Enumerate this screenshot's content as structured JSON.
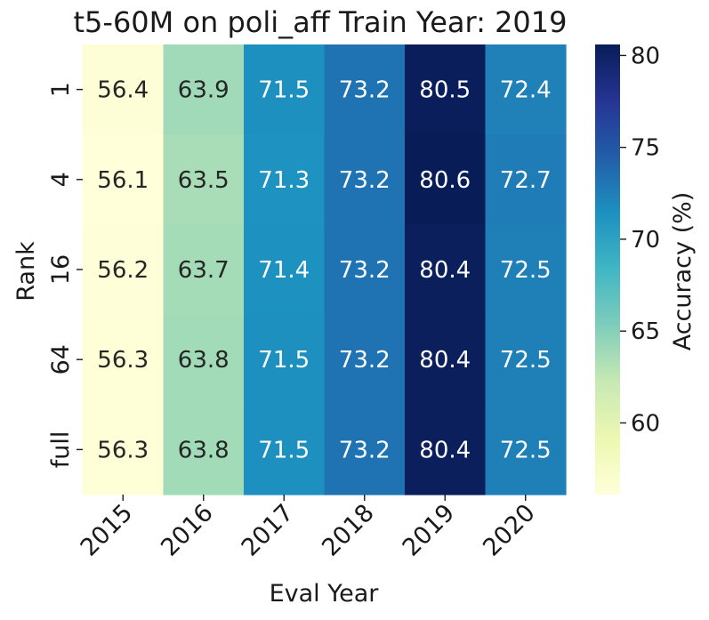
{
  "chart_data": {
    "type": "heatmap",
    "title": "t5-60M on poli_aff Train Year: 2019",
    "xlabel": "Eval Year",
    "ylabel": "Rank",
    "x_categories": [
      "2015",
      "2016",
      "2017",
      "2018",
      "2019",
      "2020"
    ],
    "y_categories": [
      "1",
      "4",
      "16",
      "64",
      "full"
    ],
    "values": [
      [
        56.4,
        63.9,
        71.5,
        73.2,
        80.5,
        72.4
      ],
      [
        56.1,
        63.5,
        71.3,
        73.2,
        80.6,
        72.7
      ],
      [
        56.2,
        63.7,
        71.4,
        73.2,
        80.4,
        72.5
      ],
      [
        56.3,
        63.8,
        71.5,
        73.2,
        80.4,
        72.5
      ],
      [
        56.3,
        63.8,
        71.5,
        73.2,
        80.4,
        72.5
      ]
    ],
    "colorbar": {
      "label": "Accuracy (%)",
      "colormap": "YlGnBu",
      "vmin": 56.1,
      "vmax": 80.6,
      "ticks": [
        60,
        65,
        70,
        75,
        80
      ]
    }
  }
}
